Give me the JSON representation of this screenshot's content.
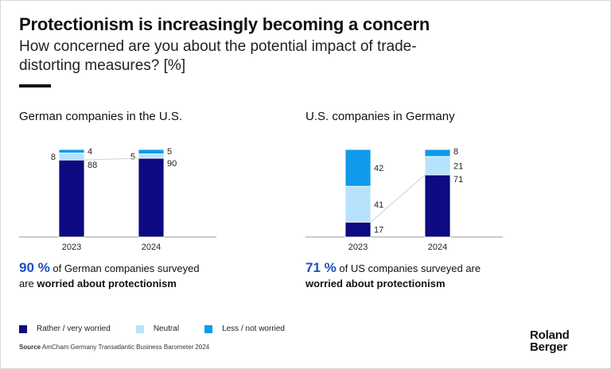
{
  "header": {
    "title": "Protectionism is increasingly becoming a concern",
    "subtitle": "How concerned are you about the potential impact of trade-distorting measures? [%]"
  },
  "colors": {
    "very_worried": "#0d0a82",
    "neutral": "#b6e3fb",
    "less_worried": "#0f9aeb",
    "accent": "#1f4fc4"
  },
  "chart_data": [
    {
      "type": "bar",
      "stacked": true,
      "title": "German companies in the U.S.",
      "categories": [
        "2023",
        "2024"
      ],
      "series": [
        {
          "name": "Rather / very worried",
          "values": [
            88,
            90
          ]
        },
        {
          "name": "Neutral",
          "values": [
            8,
            5
          ]
        },
        {
          "name": "Less / not worried",
          "values": [
            4,
            5
          ]
        }
      ],
      "ylim": [
        0,
        100
      ]
    },
    {
      "type": "bar",
      "stacked": true,
      "title": "U.S. companies in Germany",
      "categories": [
        "2023",
        "2024"
      ],
      "series": [
        {
          "name": "Rather / very worried",
          "values": [
            17,
            71
          ]
        },
        {
          "name": "Neutral",
          "values": [
            41,
            21
          ]
        },
        {
          "name": "Less / not worried",
          "values": [
            42,
            8
          ]
        }
      ],
      "ylim": [
        0,
        100
      ]
    }
  ],
  "findings": [
    {
      "pct": "90 %",
      "text1": " of German companies surveyed",
      "text2a": "are ",
      "bold": "worried about protectionism"
    },
    {
      "pct": "71 %",
      "text1": " of US companies surveyed are",
      "text2a": "",
      "bold": "worried about protectionism"
    }
  ],
  "legend": [
    {
      "label": "Rather / very worried",
      "color": "#0d0a82"
    },
    {
      "label": "Neutral",
      "color": "#b6e3fb"
    },
    {
      "label": "Less / not worried",
      "color": "#0f9aeb"
    }
  ],
  "source": {
    "label": "Source",
    "text": "AmCham Germany Transatlantic Business Barometer 2024"
  },
  "logo": {
    "line1": "Roland",
    "line2": "Berger"
  }
}
